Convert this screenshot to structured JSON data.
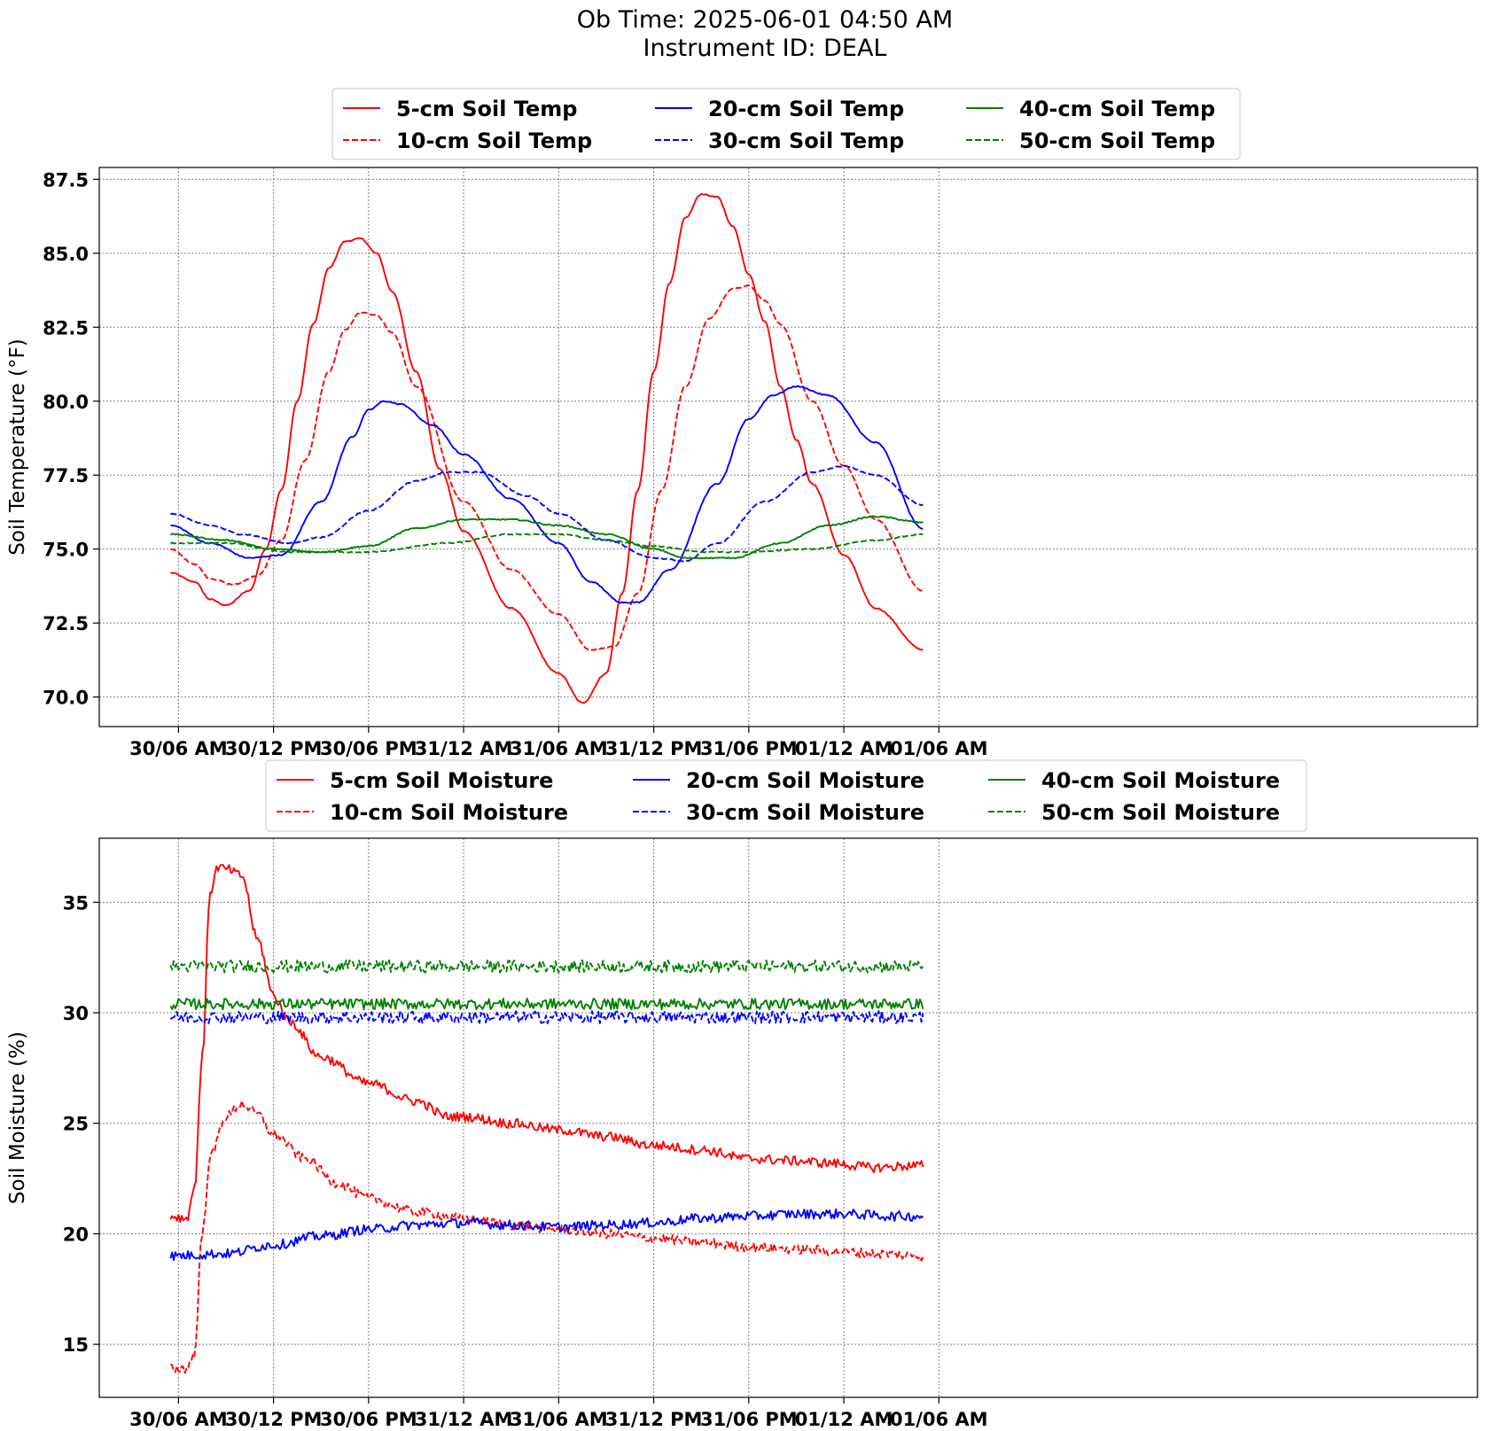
{
  "figure": {
    "title_line1": "Ob Time: 2025-06-01 04:50 AM",
    "title_line2": "Instrument ID: DEAL"
  },
  "chart_data": [
    {
      "type": "line",
      "ylabel": "Soil Temperature (°F)",
      "xlabel": "",
      "x_unit": "hours since 30/06 AM",
      "xlim": [
        -5,
        82
      ],
      "ylim": [
        69.0,
        87.9
      ],
      "x_ticks": [
        0,
        6,
        12,
        18,
        24,
        30,
        36,
        42,
        48
      ],
      "x_tick_labels": [
        "30/06 AM",
        "30/12 PM",
        "30/06 PM",
        "31/12 AM",
        "31/06 AM",
        "31/12 PM",
        "31/06 PM",
        "01/12 AM",
        "01/06 AM"
      ],
      "y_ticks": [
        70.0,
        72.5,
        75.0,
        77.5,
        80.0,
        82.5,
        85.0,
        87.5
      ],
      "y_tick_labels": [
        "70.0",
        "72.5",
        "75.0",
        "77.5",
        "80.0",
        "82.5",
        "85.0",
        "87.5"
      ],
      "grid": true,
      "legend": {
        "placement": "top-center, above plot",
        "columns": 3
      },
      "series": [
        {
          "name": "5-cm Soil Temp",
          "color": "#ff0000",
          "style": "solid",
          "x": [
            -0.5,
            1.0,
            2.0,
            3.0,
            4.5,
            5.5,
            6.5,
            7.5,
            8.5,
            9.5,
            10.5,
            11.5,
            12.5,
            13.5,
            15.0,
            16.5,
            18.0,
            21.0,
            24.0,
            25.5,
            27.0,
            28.0,
            29.0,
            30.0,
            31.0,
            32.0,
            33.0,
            34.0,
            35.0,
            36.0,
            37.0,
            38.0,
            39.0,
            40.0,
            42.0,
            44.0,
            47.0
          ],
          "y": [
            74.2,
            73.9,
            73.3,
            73.1,
            73.6,
            75.0,
            77.0,
            80.0,
            82.6,
            84.5,
            85.4,
            85.5,
            85.0,
            83.7,
            81.0,
            77.7,
            75.6,
            73.0,
            70.8,
            69.8,
            70.8,
            73.5,
            77.0,
            81.0,
            84.0,
            86.2,
            87.0,
            86.9,
            85.9,
            84.3,
            82.7,
            80.5,
            78.7,
            77.2,
            74.8,
            73.0,
            71.6
          ]
        },
        {
          "name": "10-cm Soil Temp",
          "color": "#ff0000",
          "style": "dashed",
          "x": [
            -0.5,
            1.0,
            2.0,
            3.5,
            5.0,
            6.5,
            8.0,
            9.5,
            10.5,
            11.5,
            12.5,
            13.5,
            15.0,
            18.0,
            21.0,
            24.0,
            26.0,
            27.5,
            29.0,
            30.5,
            32.0,
            33.5,
            35.0,
            36.0,
            37.0,
            38.0,
            40.0,
            42.0,
            44.0,
            47.0
          ],
          "y": [
            75.0,
            74.5,
            74.0,
            73.8,
            74.1,
            75.3,
            78.0,
            81.0,
            82.4,
            83.0,
            82.9,
            82.3,
            80.5,
            76.6,
            74.3,
            72.8,
            71.6,
            71.7,
            73.5,
            77.0,
            80.5,
            82.8,
            83.8,
            83.9,
            83.4,
            82.6,
            80.0,
            77.8,
            76.0,
            73.6
          ]
        },
        {
          "name": "20-cm Soil Temp",
          "color": "#0000ff",
          "style": "solid",
          "x": [
            -0.5,
            2.0,
            4.5,
            6.5,
            9.0,
            11.0,
            12.0,
            13.0,
            14.0,
            16.0,
            18.0,
            21.0,
            24.0,
            26.0,
            28.0,
            29.0,
            31.0,
            34.0,
            36.0,
            37.5,
            39.0,
            41.0,
            44.0,
            47.0
          ],
          "y": [
            75.8,
            75.2,
            74.7,
            74.8,
            76.6,
            78.8,
            79.7,
            80.0,
            79.9,
            79.2,
            78.2,
            76.7,
            75.2,
            73.9,
            73.2,
            73.2,
            74.3,
            77.2,
            79.4,
            80.2,
            80.5,
            80.2,
            78.6,
            75.7
          ]
        },
        {
          "name": "30-cm Soil Temp",
          "color": "#0000ff",
          "style": "dashed",
          "x": [
            -0.5,
            2.0,
            4.0,
            7.0,
            9.0,
            12.0,
            15.0,
            17.0,
            19.0,
            22.0,
            24.0,
            27.0,
            30.0,
            32.0,
            34.0,
            37.0,
            40.0,
            42.0,
            44.0,
            47.0
          ],
          "y": [
            76.2,
            75.8,
            75.5,
            75.2,
            75.4,
            76.3,
            77.3,
            77.6,
            77.6,
            76.8,
            76.2,
            75.3,
            74.7,
            74.6,
            75.2,
            76.6,
            77.6,
            77.8,
            77.5,
            76.5
          ]
        },
        {
          "name": "40-cm Soil Temp",
          "color": "#008000",
          "style": "solid",
          "x": [
            -0.5,
            3.0,
            6.0,
            9.0,
            12.0,
            15.0,
            18.0,
            21.0,
            24.0,
            27.0,
            30.0,
            32.0,
            35.0,
            38.0,
            41.0,
            44.0,
            47.0
          ],
          "y": [
            75.5,
            75.3,
            75.0,
            74.9,
            75.1,
            75.7,
            76.0,
            76.0,
            75.8,
            75.5,
            75.0,
            74.7,
            74.7,
            75.2,
            75.8,
            76.1,
            75.9
          ]
        },
        {
          "name": "50-cm Soil Temp",
          "color": "#008000",
          "style": "dashed",
          "x": [
            -0.5,
            3.0,
            7.0,
            12.0,
            17.0,
            21.0,
            24.0,
            27.0,
            30.0,
            33.0,
            36.0,
            40.0,
            44.0,
            47.0
          ],
          "y": [
            75.2,
            75.2,
            74.9,
            74.9,
            75.2,
            75.5,
            75.5,
            75.3,
            75.1,
            74.9,
            74.9,
            75.0,
            75.3,
            75.5
          ]
        }
      ]
    },
    {
      "type": "line",
      "ylabel": "Soil Moisture (%)",
      "xlabel": "",
      "x_unit": "hours since 30/06 AM",
      "xlim": [
        -5,
        82
      ],
      "ylim": [
        12.6,
        37.9
      ],
      "x_ticks": [
        0,
        6,
        12,
        18,
        24,
        30,
        36,
        42,
        48
      ],
      "x_tick_labels": [
        "30/06 AM",
        "30/12 PM",
        "30/06 PM",
        "31/12 AM",
        "31/06 AM",
        "31/12 PM",
        "31/06 PM",
        "01/12 AM",
        "01/06 AM"
      ],
      "y_ticks": [
        15,
        20,
        25,
        30,
        35
      ],
      "y_tick_labels": [
        "15",
        "20",
        "25",
        "30",
        "35"
      ],
      "grid": true,
      "legend": {
        "placement": "top-center, above plot",
        "columns": 3
      },
      "series": [
        {
          "name": "5-cm Soil Moisture",
          "color": "#ff0000",
          "style": "solid",
          "x": [
            -0.5,
            0.5,
            1.0,
            1.5,
            2.0,
            2.5,
            3.0,
            4.0,
            5.0,
            6.0,
            7.0,
            9.0,
            12.0,
            15.0,
            17.0,
            18.0,
            21.0,
            24.0,
            27.0,
            30.0,
            33.0,
            36.0,
            39.0,
            41.0,
            44.0,
            47.0
          ],
          "y": [
            20.8,
            20.7,
            22.0,
            28.0,
            35.5,
            36.6,
            36.5,
            36.2,
            33.3,
            30.8,
            29.6,
            28.0,
            26.8,
            26.0,
            25.3,
            25.3,
            25.0,
            24.7,
            24.4,
            24.0,
            23.8,
            23.4,
            23.3,
            23.2,
            23.0,
            23.1
          ]
        },
        {
          "name": "10-cm Soil Moisture",
          "color": "#ff0000",
          "style": "dashed",
          "x": [
            -0.5,
            0.5,
            1.0,
            1.5,
            2.0,
            3.0,
            4.0,
            5.0,
            6.0,
            8.0,
            10.0,
            12.0,
            15.0,
            18.0,
            21.0,
            24.0,
            27.0,
            30.0,
            33.0,
            36.0,
            39.0,
            42.0,
            44.0,
            47.0
          ],
          "y": [
            13.9,
            13.9,
            14.5,
            20.0,
            23.5,
            25.3,
            25.9,
            25.4,
            24.5,
            23.4,
            22.3,
            21.6,
            21.0,
            20.7,
            20.4,
            20.2,
            20.0,
            19.8,
            19.6,
            19.4,
            19.3,
            19.2,
            19.1,
            19.0
          ]
        },
        {
          "name": "20-cm Soil Moisture",
          "color": "#0000ff",
          "style": "solid",
          "x": [
            -0.5,
            3.0,
            6.0,
            9.0,
            12.0,
            15.0,
            18.0,
            21.0,
            24.0,
            27.0,
            30.0,
            33.0,
            36.0,
            39.0,
            42.0,
            45.0,
            47.0
          ],
          "y": [
            19.0,
            19.1,
            19.5,
            19.9,
            20.2,
            20.4,
            20.5,
            20.4,
            20.3,
            20.4,
            20.5,
            20.7,
            20.8,
            20.9,
            20.9,
            20.8,
            20.8
          ]
        },
        {
          "name": "30-cm Soil Moisture",
          "color": "#0000ff",
          "style": "dashed",
          "x": [
            -0.5,
            12.0,
            24.0,
            36.0,
            47.0
          ],
          "y": [
            29.8,
            29.8,
            29.8,
            29.8,
            29.8
          ]
        },
        {
          "name": "40-cm Soil Moisture",
          "color": "#008000",
          "style": "solid",
          "x": [
            -0.5,
            12.0,
            24.0,
            36.0,
            47.0
          ],
          "y": [
            30.4,
            30.4,
            30.4,
            30.4,
            30.4
          ]
        },
        {
          "name": "50-cm Soil Moisture",
          "color": "#008000",
          "style": "dashed",
          "x": [
            -0.5,
            12.0,
            24.0,
            36.0,
            47.0
          ],
          "y": [
            32.1,
            32.1,
            32.1,
            32.1,
            32.1
          ]
        }
      ]
    }
  ]
}
